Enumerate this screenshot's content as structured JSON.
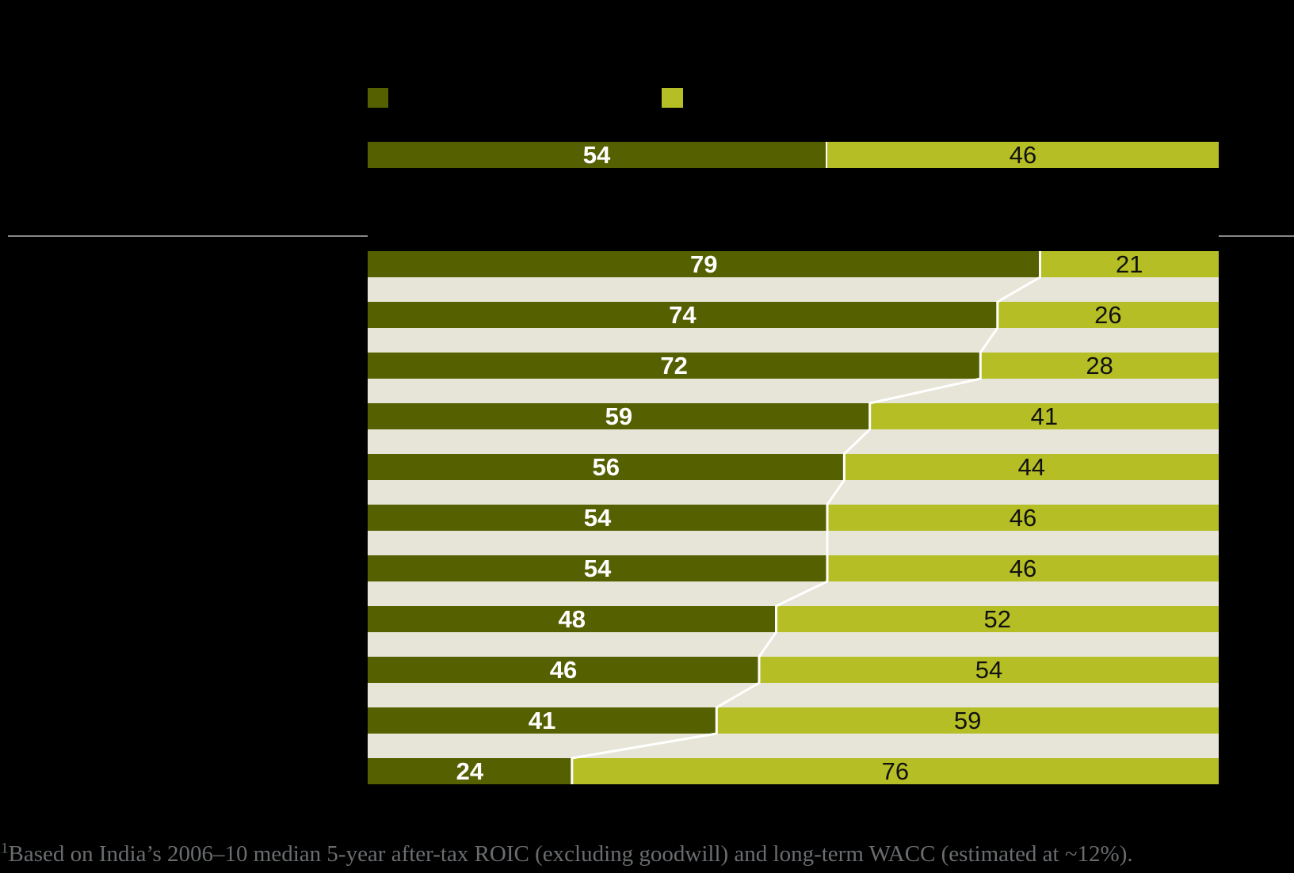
{
  "colors": {
    "background": "#000000",
    "dark_segment": "#556001",
    "light_segment": "#b5be24",
    "row_gap_stripe": "#e6e5d7",
    "connector_line": "#ffffff",
    "separator_rule": "#87888a",
    "label_on_dark": "#ffffff",
    "label_on_light": "#111111",
    "footnote_text": "#6a6d70"
  },
  "legend": {
    "swatches": [
      {
        "name": "dark-swatch",
        "color": "#556001"
      },
      {
        "name": "light-swatch",
        "color": "#b5be24"
      }
    ]
  },
  "summary_bar": {
    "dark_value": "54",
    "light_value": "46"
  },
  "chart_data": {
    "type": "bar",
    "orientation": "horizontal",
    "stacked": true,
    "value_unit": "%",
    "xlim": [
      0,
      100
    ],
    "grid": false,
    "summary_row": {
      "dark": 54,
      "light": 46
    },
    "series": [
      {
        "name": "dark-olive-share",
        "color": "#556001",
        "values": [
          79,
          74,
          72,
          59,
          56,
          54,
          54,
          48,
          46,
          41,
          24
        ]
      },
      {
        "name": "yellow-green-share",
        "color": "#b5be24",
        "values": [
          21,
          26,
          28,
          41,
          44,
          46,
          46,
          52,
          54,
          59,
          76
        ]
      }
    ],
    "row_pairs": [
      [
        79,
        21
      ],
      [
        74,
        26
      ],
      [
        72,
        28
      ],
      [
        59,
        41
      ],
      [
        56,
        44
      ],
      [
        54,
        46
      ],
      [
        54,
        46
      ],
      [
        48,
        52
      ],
      [
        46,
        54
      ],
      [
        41,
        59
      ],
      [
        24,
        76
      ]
    ]
  },
  "footnote": {
    "marker": "1",
    "text": "Based on India’s 2006–10 median 5-year after-tax ROIC (excluding goodwill) and long-term WACC (estimated at ~12%)."
  }
}
